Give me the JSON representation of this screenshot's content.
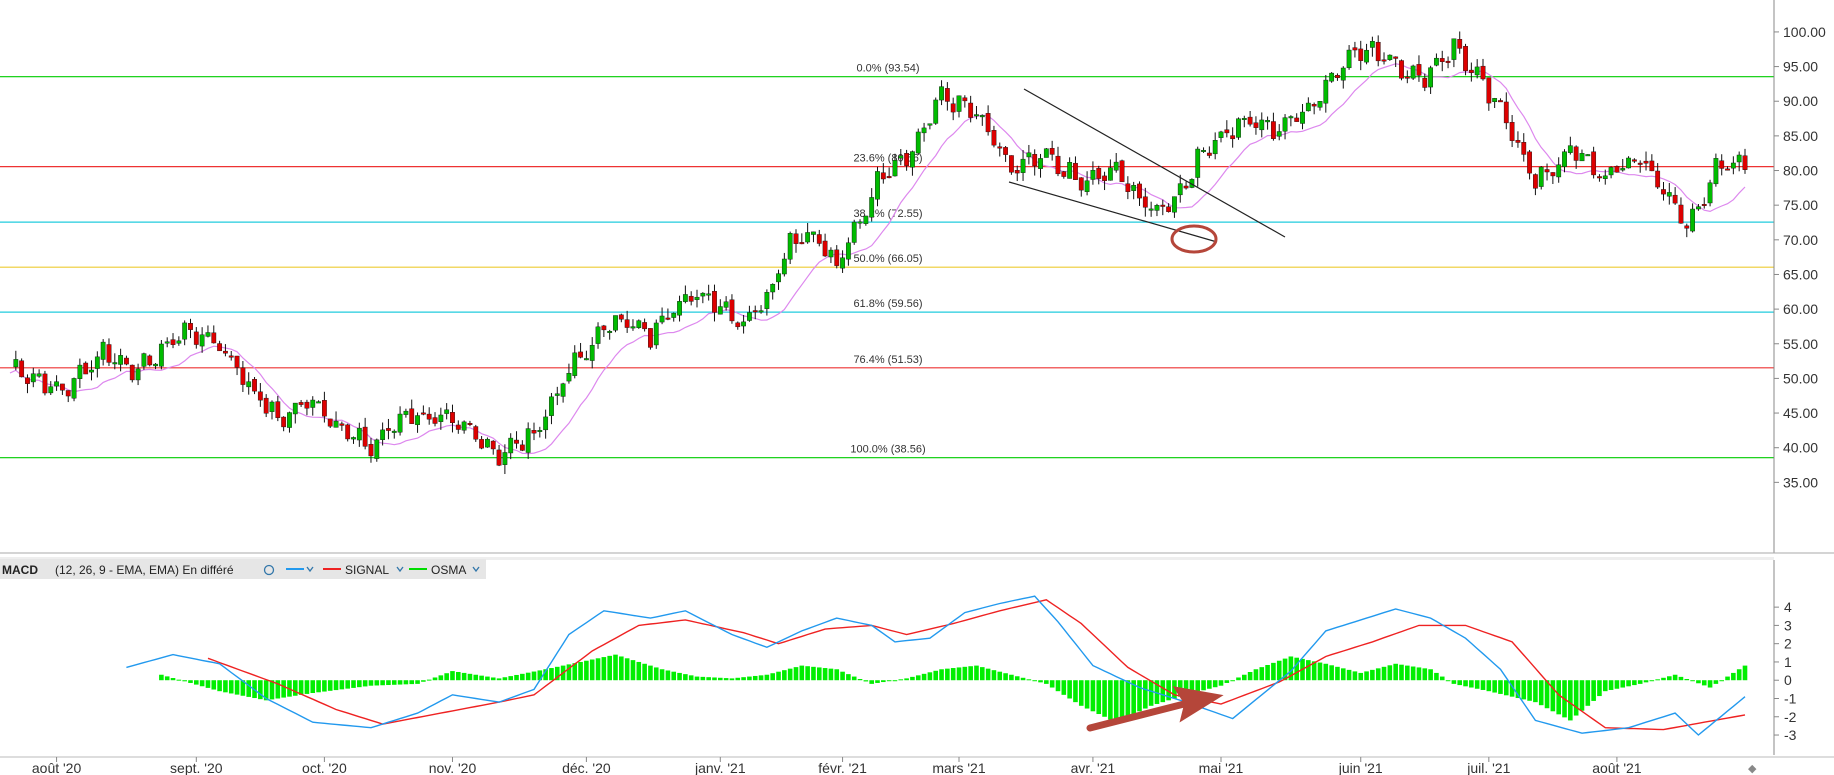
{
  "chart_data": [
    {
      "type": "candlestick",
      "title": "",
      "ylim": [
        30,
        101
      ],
      "y_ticks": [
        "100.00",
        "95.00",
        "90.00",
        "85.00",
        "80.00",
        "75.00",
        "70.00",
        "65.00",
        "60.00",
        "55.00",
        "50.00",
        "45.00",
        "40.00",
        "35.00"
      ],
      "x_ticks": [
        "août '20",
        "sept. '20",
        "oct. '20",
        "nov. '20",
        "déc. '20",
        "janv. '21",
        "févr. '21",
        "mars '21",
        "avr. '21",
        "mai '21",
        "juin '21",
        "juil. '21",
        "août '21"
      ],
      "colors": {
        "up": "#00bb00",
        "down": "#dd0000",
        "ma": "#dd88ee"
      },
      "price_path": [
        [
          0,
          52
        ],
        [
          9,
          48
        ],
        [
          16,
          54
        ],
        [
          22,
          51
        ],
        [
          30,
          57
        ],
        [
          36,
          55
        ],
        [
          42,
          48
        ],
        [
          46,
          44
        ],
        [
          52,
          47
        ],
        [
          58,
          42
        ],
        [
          62,
          40
        ],
        [
          68,
          45
        ],
        [
          74,
          44
        ],
        [
          80,
          42
        ],
        [
          84,
          39
        ],
        [
          90,
          42
        ],
        [
          96,
          51
        ],
        [
          104,
          59
        ],
        [
          110,
          56
        ],
        [
          114,
          61
        ],
        [
          120,
          62
        ],
        [
          126,
          58
        ],
        [
          130,
          62
        ],
        [
          134,
          70
        ],
        [
          138,
          71
        ],
        [
          142,
          66
        ],
        [
          146,
          73
        ],
        [
          150,
          80
        ],
        [
          155,
          83
        ],
        [
          160,
          91
        ],
        [
          166,
          88
        ],
        [
          172,
          80
        ],
        [
          178,
          82
        ],
        [
          184,
          78
        ],
        [
          190,
          80
        ],
        [
          196,
          74
        ],
        [
          200,
          76
        ],
        [
          206,
          84
        ],
        [
          212,
          87
        ],
        [
          218,
          86
        ],
        [
          224,
          90
        ],
        [
          230,
          97
        ],
        [
          236,
          97
        ],
        [
          242,
          93
        ],
        [
          248,
          98
        ],
        [
          254,
          91
        ],
        [
          258,
          86
        ],
        [
          262,
          78
        ],
        [
          268,
          83
        ],
        [
          274,
          79
        ],
        [
          280,
          82
        ],
        [
          288,
          72
        ],
        [
          293,
          80
        ],
        [
          298,
          81
        ]
      ],
      "fibonacci": [
        {
          "label": "0.0% (93.54)",
          "price": 93.54,
          "color": "#00cc00"
        },
        {
          "label": "23.6% (80.56)",
          "price": 80.56,
          "color": "#ee3333"
        },
        {
          "label": "38.2% (72.55)",
          "price": 72.55,
          "color": "#22ccdd"
        },
        {
          "label": "50.0% (66.05)",
          "price": 66.05,
          "color": "#eecc33"
        },
        {
          "label": "61.8% (59.56)",
          "price": 59.56,
          "color": "#22ccdd"
        },
        {
          "label": "76.4% (51.53)",
          "price": 51.53,
          "color": "#ee3333"
        },
        {
          "label": "100.0% (38.56)",
          "price": 38.56,
          "color": "#00cc00"
        }
      ]
    },
    {
      "type": "line",
      "title": "MACD",
      "legend": {
        "name": "MACD",
        "params": "(12, 26, 9 - EMA, EMA) En différé",
        "signal": "SIGNAL",
        "osma": "OSMA"
      },
      "ylim": [
        -3.6,
        4.5
      ],
      "y_ticks": [
        "4",
        "3",
        "2",
        "1",
        "0",
        "-1",
        "-2",
        "-3"
      ],
      "colors": {
        "macd": "#2299ee",
        "signal": "#ee2222",
        "osma": "#00ee00"
      },
      "macd_path": [
        [
          20,
          0.7
        ],
        [
          28,
          1.4
        ],
        [
          36,
          0.9
        ],
        [
          44,
          -1.0
        ],
        [
          52,
          -2.3
        ],
        [
          62,
          -2.6
        ],
        [
          70,
          -1.8
        ],
        [
          76,
          -0.8
        ],
        [
          84,
          -1.2
        ],
        [
          90,
          -0.5
        ],
        [
          96,
          2.5
        ],
        [
          102,
          3.8
        ],
        [
          110,
          3.4
        ],
        [
          116,
          3.8
        ],
        [
          124,
          2.5
        ],
        [
          130,
          1.8
        ],
        [
          136,
          2.7
        ],
        [
          142,
          3.4
        ],
        [
          148,
          3.0
        ],
        [
          152,
          2.1
        ],
        [
          158,
          2.3
        ],
        [
          164,
          3.7
        ],
        [
          170,
          4.2
        ],
        [
          176,
          4.6
        ],
        [
          180,
          3.2
        ],
        [
          186,
          0.8
        ],
        [
          194,
          -0.4
        ],
        [
          202,
          -1.2
        ],
        [
          210,
          -2.1
        ],
        [
          220,
          0.5
        ],
        [
          226,
          2.7
        ],
        [
          232,
          3.3
        ],
        [
          238,
          3.9
        ],
        [
          244,
          3.4
        ],
        [
          250,
          2.3
        ],
        [
          256,
          0.6
        ],
        [
          262,
          -2.2
        ],
        [
          270,
          -2.9
        ],
        [
          278,
          -2.6
        ],
        [
          286,
          -1.8
        ],
        [
          290,
          -3.0
        ],
        [
          298,
          -0.9
        ]
      ],
      "signal_path": [
        [
          34,
          1.2
        ],
        [
          46,
          -0.2
        ],
        [
          56,
          -1.6
        ],
        [
          64,
          -2.4
        ],
        [
          74,
          -1.8
        ],
        [
          84,
          -1.2
        ],
        [
          90,
          -0.8
        ],
        [
          100,
          1.6
        ],
        [
          108,
          3.0
        ],
        [
          116,
          3.3
        ],
        [
          126,
          2.6
        ],
        [
          132,
          2.0
        ],
        [
          140,
          2.8
        ],
        [
          148,
          3.0
        ],
        [
          154,
          2.5
        ],
        [
          162,
          3.1
        ],
        [
          170,
          3.8
        ],
        [
          178,
          4.4
        ],
        [
          184,
          3.1
        ],
        [
          192,
          0.7
        ],
        [
          200,
          -0.8
        ],
        [
          208,
          -1.3
        ],
        [
          218,
          -0.1
        ],
        [
          226,
          1.3
        ],
        [
          234,
          2.1
        ],
        [
          242,
          3.0
        ],
        [
          250,
          3.0
        ],
        [
          258,
          2.1
        ],
        [
          266,
          -0.8
        ],
        [
          274,
          -2.6
        ],
        [
          284,
          -2.7
        ],
        [
          298,
          -1.9
        ]
      ],
      "osma_path": [
        [
          26,
          0.3
        ],
        [
          36,
          -0.6
        ],
        [
          44,
          -1.1
        ],
        [
          52,
          -0.7
        ],
        [
          62,
          -0.3
        ],
        [
          70,
          -0.2
        ],
        [
          76,
          0.5
        ],
        [
          84,
          0.1
        ],
        [
          92,
          0.6
        ],
        [
          98,
          1.0
        ],
        [
          104,
          1.4
        ],
        [
          112,
          0.6
        ],
        [
          118,
          0.2
        ],
        [
          124,
          0.1
        ],
        [
          130,
          0.3
        ],
        [
          136,
          0.8
        ],
        [
          142,
          0.6
        ],
        [
          148,
          -0.2
        ],
        [
          154,
          0.1
        ],
        [
          160,
          0.6
        ],
        [
          166,
          0.8
        ],
        [
          172,
          0.3
        ],
        [
          178,
          -0.2
        ],
        [
          184,
          -1.4
        ],
        [
          190,
          -2.3
        ],
        [
          196,
          -1.4
        ],
        [
          202,
          -0.8
        ],
        [
          208,
          -0.3
        ],
        [
          214,
          0.6
        ],
        [
          220,
          1.3
        ],
        [
          226,
          0.9
        ],
        [
          232,
          0.4
        ],
        [
          238,
          0.9
        ],
        [
          244,
          0.6
        ],
        [
          248,
          -0.2
        ],
        [
          254,
          -0.6
        ],
        [
          262,
          -1.2
        ],
        [
          268,
          -2.2
        ],
        [
          274,
          -0.6
        ],
        [
          280,
          -0.2
        ],
        [
          286,
          0.3
        ],
        [
          292,
          -0.4
        ],
        [
          298,
          0.8
        ]
      ]
    }
  ]
}
